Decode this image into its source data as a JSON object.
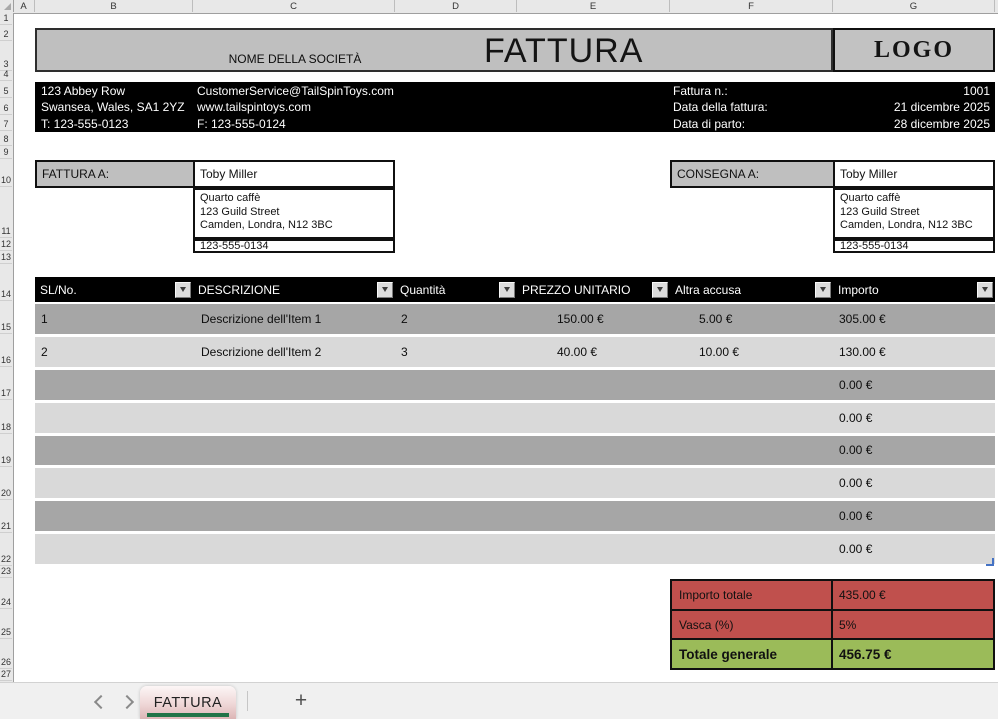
{
  "grid": {
    "column_letters": [
      "A",
      "B",
      "C",
      "D",
      "E",
      "F",
      "G"
    ],
    "row_numbers": [
      "1",
      "2",
      "3",
      "4",
      "5",
      "6",
      "7",
      "8",
      "9",
      "10",
      "11",
      "12",
      "13",
      "14",
      "15",
      "16",
      "17",
      "18",
      "19",
      "20",
      "21",
      "22",
      "23",
      "24",
      "25",
      "26",
      "27"
    ]
  },
  "header": {
    "company_name": "NOME DELLA SOCIETÀ",
    "invoice_title": "FATTURA",
    "logo_text": "LOGO"
  },
  "contact": {
    "address_line1": "123 Abbey Row",
    "address_line2": "Swansea, Wales, SA1 2YZ",
    "phone": "T: 123-555-0123",
    "email": "CustomerService@TailSpinToys.com",
    "website": "www.tailspintoys.com",
    "fax": "F: 123-555-0124",
    "invoice_number_label": "Fattura n.:",
    "invoice_number": "1001",
    "invoice_date_label": "Data della fattura:",
    "invoice_date": "21 dicembre 2025",
    "delivery_date_label": "Data di parto:",
    "delivery_date": "28 dicembre 2025"
  },
  "bill_to": {
    "label": "FATTURA A:",
    "name": "Toby Miller",
    "company": "Quarto caffè",
    "street": "123 Guild Street",
    "city": "Camden, Londra, N12 3BC",
    "phone": "123-555-0134"
  },
  "ship_to": {
    "label": "CONSEGNA A:",
    "name": "Toby Miller",
    "company": "Quarto caffè",
    "street": "123 Guild Street",
    "city": "Camden, Londra, N12 3BC",
    "phone": "123-555-0134"
  },
  "invoice_table": {
    "columns": [
      "SL/No.",
      "DESCRIZIONE",
      "Quantità",
      "PREZZO UNITARIO",
      "Altra accusa",
      "Importo"
    ],
    "rows": [
      {
        "sl": "1",
        "desc": "Descrizione dell'Item 1",
        "qty": "2",
        "unit": "150.00 €",
        "other": "5.00 €",
        "amount": "305.00 €"
      },
      {
        "sl": "2",
        "desc": "Descrizione dell'Item 2",
        "qty": "3",
        "unit": "40.00 €",
        "other": "10.00 €",
        "amount": "130.00 €"
      },
      {
        "sl": "",
        "desc": "",
        "qty": "",
        "unit": "",
        "other": "",
        "amount": "0.00 €"
      },
      {
        "sl": "",
        "desc": "",
        "qty": "",
        "unit": "",
        "other": "",
        "amount": "0.00 €"
      },
      {
        "sl": "",
        "desc": "",
        "qty": "",
        "unit": "",
        "other": "",
        "amount": "0.00 €"
      },
      {
        "sl": "",
        "desc": "",
        "qty": "",
        "unit": "",
        "other": "",
        "amount": "0.00 €"
      },
      {
        "sl": "",
        "desc": "",
        "qty": "",
        "unit": "",
        "other": "",
        "amount": "0.00 €"
      },
      {
        "sl": "",
        "desc": "",
        "qty": "",
        "unit": "",
        "other": "",
        "amount": "0.00 €"
      }
    ]
  },
  "totals": {
    "subtotal_label": "Importo totale",
    "subtotal_value": "435.00 €",
    "tax_label": "Vasca (%)",
    "tax_value": "5%",
    "grand_total_label": "Totale generale",
    "grand_total_value": "456.75 €"
  },
  "sheet_bar": {
    "active_tab": "FATTURA",
    "add_label": "+"
  },
  "colors": {
    "header_block_bg": "#bfbfbf",
    "contact_bar_bg": "#000000",
    "table_header_bg": "#000000",
    "row_dark": "#a6a6a6",
    "row_light": "#d9d9d9",
    "totals_red": "#c0504d",
    "grand_total_green": "#9bbb59",
    "active_tab_underline": "#217346"
  }
}
